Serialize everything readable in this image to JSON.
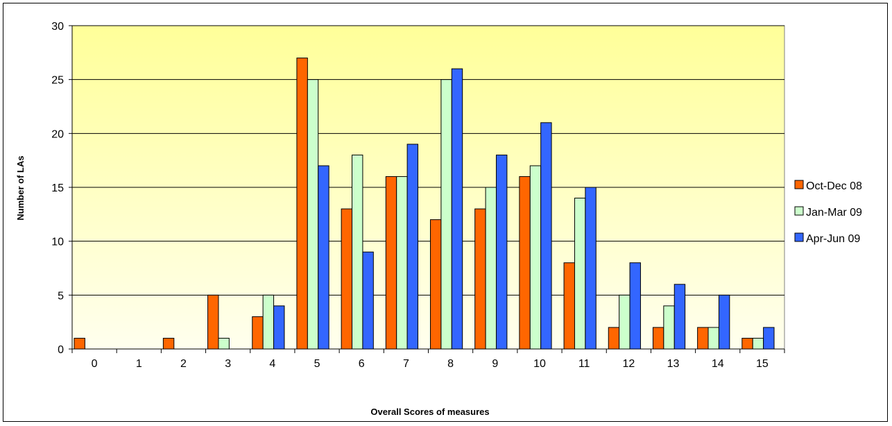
{
  "chart_data": {
    "type": "bar",
    "title": "",
    "xlabel": "Overall Scores of measures",
    "ylabel": "Number of LAs",
    "ylim": [
      0,
      30
    ],
    "yticks": [
      0,
      5,
      10,
      15,
      20,
      25,
      30
    ],
    "grid": true,
    "legend_position": "right",
    "categories": [
      "0",
      "1",
      "2",
      "3",
      "4",
      "5",
      "6",
      "7",
      "8",
      "9",
      "10",
      "11",
      "12",
      "13",
      "14",
      "15"
    ],
    "series": [
      {
        "name": "Oct-Dec 08",
        "color": "#ff6600",
        "values": [
          1,
          0,
          1,
          5,
          3,
          27,
          13,
          16,
          12,
          13,
          16,
          8,
          2,
          2,
          2,
          1
        ]
      },
      {
        "name": "Jan-Mar 09",
        "color": "#ccffcc",
        "values": [
          0,
          0,
          0,
          1,
          5,
          25,
          18,
          16,
          25,
          15,
          17,
          14,
          5,
          4,
          2,
          1
        ]
      },
      {
        "name": "Apr-Jun 09",
        "color": "#3366ff",
        "values": [
          0,
          0,
          0,
          0,
          4,
          17,
          9,
          19,
          26,
          18,
          21,
          15,
          8,
          6,
          5,
          2
        ]
      }
    ],
    "plot_background": {
      "top": "#ffff99",
      "bottom": "#ffffee"
    }
  }
}
